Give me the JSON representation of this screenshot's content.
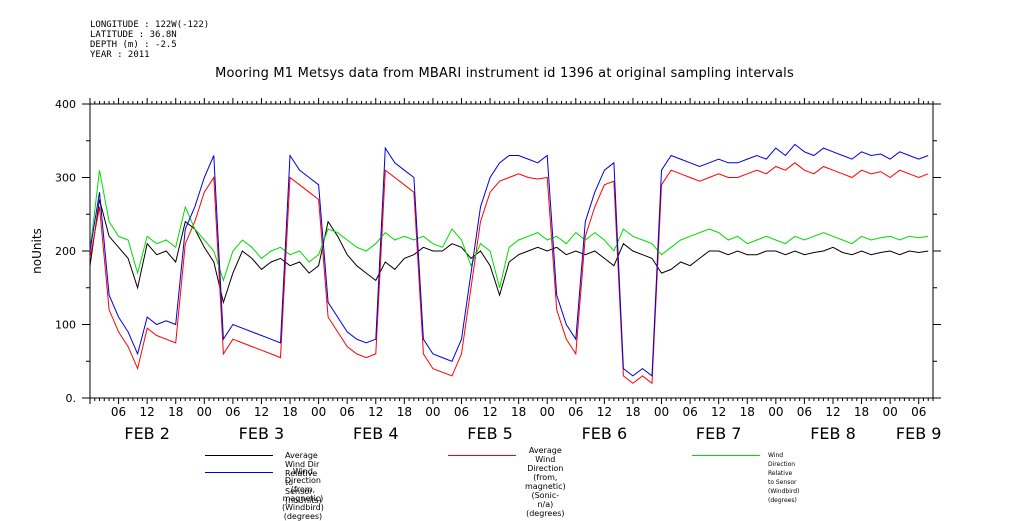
{
  "meta": {
    "longitude": "LONGITUDE : 122W(-122)",
    "latitude": "LATITUDE : 36.8N",
    "depth": "DEPTH (m) : -2.5",
    "year": "YEAR : 2011"
  },
  "chart_data": {
    "type": "line",
    "title": "Mooring M1 Metsys data from MBARI instrument id 1396 at original sampling intervals",
    "ylabel": "noUnits",
    "xlabel": "",
    "ylim": [
      0,
      400
    ],
    "xlim": [
      0,
      177
    ],
    "y_ticks": [
      0,
      100,
      200,
      300,
      400
    ],
    "y_tick_labels": [
      "0.",
      "100",
      "200",
      "300",
      "400"
    ],
    "x_hour_ticks": [
      6,
      12,
      18,
      24,
      30,
      36,
      42,
      48,
      54,
      60,
      66,
      72,
      78,
      84,
      90,
      96,
      102,
      108,
      114,
      120,
      126,
      132,
      138,
      144,
      150,
      156,
      162,
      168,
      174
    ],
    "x_hour_tick_labels": [
      "06",
      "12",
      "18",
      "00",
      "06",
      "12",
      "18",
      "00",
      "06",
      "12",
      "18",
      "00",
      "06",
      "12",
      "18",
      "00",
      "06",
      "12",
      "18",
      "00",
      "06",
      "12",
      "18",
      "00",
      "06",
      "12",
      "18",
      "00",
      "06"
    ],
    "x_day_labels": [
      {
        "x": 12,
        "label": "FEB  2"
      },
      {
        "x": 36,
        "label": "FEB  3"
      },
      {
        "x": 60,
        "label": "FEB  4"
      },
      {
        "x": 84,
        "label": "FEB  5"
      },
      {
        "x": 108,
        "label": "FEB  6"
      },
      {
        "x": 132,
        "label": "FEB  7"
      },
      {
        "x": 156,
        "label": "FEB  8"
      },
      {
        "x": 174,
        "label": "FEB  9"
      }
    ],
    "grid": false,
    "series": [
      {
        "name": "Average Wind Dir Relative to Sensor (noUnits)",
        "color": "#000000",
        "x": [
          0,
          2,
          4,
          6,
          8,
          10,
          12,
          14,
          16,
          18,
          20,
          22,
          24,
          26,
          28,
          30,
          32,
          34,
          36,
          38,
          40,
          42,
          44,
          46,
          48,
          50,
          52,
          54,
          56,
          58,
          60,
          62,
          64,
          66,
          68,
          70,
          72,
          74,
          76,
          78,
          80,
          82,
          84,
          86,
          88,
          90,
          92,
          94,
          96,
          98,
          100,
          102,
          104,
          106,
          108,
          110,
          112,
          114,
          116,
          118,
          120,
          122,
          124,
          126,
          128,
          130,
          132,
          134,
          136,
          138,
          140,
          142,
          144,
          146,
          148,
          150,
          152,
          154,
          156,
          158,
          160,
          162,
          164,
          166,
          168,
          170,
          172,
          174,
          176
        ],
        "values": [
          180,
          270,
          220,
          205,
          190,
          150,
          210,
          195,
          200,
          185,
          240,
          230,
          205,
          185,
          130,
          170,
          200,
          190,
          175,
          185,
          190,
          180,
          185,
          170,
          180,
          240,
          220,
          195,
          180,
          170,
          160,
          185,
          175,
          190,
          195,
          205,
          200,
          200,
          210,
          205,
          190,
          200,
          180,
          140,
          185,
          195,
          200,
          205,
          200,
          205,
          195,
          200,
          195,
          200,
          190,
          180,
          210,
          200,
          195,
          190,
          170,
          175,
          185,
          180,
          190,
          200,
          200,
          195,
          200,
          195,
          195,
          200,
          200,
          195,
          200,
          195,
          198,
          200,
          205,
          198,
          195,
          200,
          195,
          198,
          200,
          195,
          200,
          198,
          200
        ]
      },
      {
        "name": "Average Wind Direction (from, magnetic) (Sonic-n/a) (degrees)",
        "color": "#ff0000",
        "x": [
          0,
          2,
          4,
          6,
          8,
          10,
          12,
          14,
          16,
          18,
          20,
          22,
          24,
          26,
          28,
          30,
          32,
          34,
          36,
          38,
          40,
          42,
          44,
          46,
          48,
          50,
          52,
          54,
          56,
          58,
          60,
          62,
          64,
          66,
          68,
          70,
          72,
          74,
          76,
          78,
          80,
          82,
          84,
          86,
          88,
          90,
          92,
          94,
          96,
          98,
          100,
          102,
          104,
          106,
          108,
          110,
          112,
          114,
          116,
          118,
          120,
          122,
          124,
          126,
          128,
          130,
          132,
          134,
          136,
          138,
          140,
          142,
          144,
          146,
          148,
          150,
          152,
          154,
          156,
          158,
          160,
          162,
          164,
          166,
          168,
          170,
          172,
          174,
          176
        ],
        "values": [
          190,
          260,
          120,
          90,
          70,
          40,
          95,
          85,
          80,
          75,
          210,
          240,
          280,
          300,
          60,
          80,
          75,
          70,
          65,
          60,
          55,
          300,
          290,
          280,
          270,
          110,
          90,
          70,
          60,
          55,
          60,
          310,
          300,
          290,
          280,
          60,
          40,
          35,
          30,
          60,
          150,
          240,
          280,
          295,
          300,
          305,
          300,
          298,
          300,
          120,
          80,
          60,
          220,
          260,
          290,
          295,
          30,
          20,
          30,
          20,
          290,
          310,
          305,
          300,
          295,
          300,
          305,
          300,
          300,
          305,
          310,
          305,
          315,
          310,
          320,
          310,
          305,
          315,
          310,
          305,
          300,
          310,
          305,
          308,
          300,
          310,
          305,
          300,
          305
        ]
      },
      {
        "name": "Wind Direction Relative to Sensor (Windbird) (degrees)",
        "color": "#00dd00",
        "x": [
          0,
          2,
          4,
          6,
          8,
          10,
          12,
          14,
          16,
          18,
          20,
          22,
          24,
          26,
          28,
          30,
          32,
          34,
          36,
          38,
          40,
          42,
          44,
          46,
          48,
          50,
          52,
          54,
          56,
          58,
          60,
          62,
          64,
          66,
          68,
          70,
          72,
          74,
          76,
          78,
          80,
          82,
          84,
          86,
          88,
          90,
          92,
          94,
          96,
          98,
          100,
          102,
          104,
          106,
          108,
          110,
          112,
          114,
          116,
          118,
          120,
          122,
          124,
          126,
          128,
          130,
          132,
          134,
          136,
          138,
          140,
          142,
          144,
          146,
          148,
          150,
          152,
          154,
          156,
          158,
          160,
          162,
          164,
          166,
          168,
          170,
          172,
          174,
          176
        ],
        "values": [
          200,
          310,
          240,
          220,
          215,
          170,
          220,
          210,
          215,
          205,
          260,
          230,
          215,
          200,
          160,
          200,
          215,
          205,
          190,
          200,
          205,
          195,
          200,
          185,
          195,
          230,
          225,
          215,
          205,
          200,
          210,
          225,
          215,
          220,
          215,
          220,
          210,
          205,
          230,
          215,
          180,
          210,
          200,
          150,
          205,
          215,
          220,
          225,
          215,
          220,
          210,
          225,
          215,
          225,
          215,
          200,
          230,
          220,
          215,
          210,
          195,
          205,
          215,
          220,
          225,
          230,
          225,
          215,
          220,
          210,
          215,
          220,
          215,
          210,
          220,
          215,
          220,
          225,
          220,
          215,
          210,
          220,
          215,
          218,
          220,
          215,
          220,
          218,
          220
        ]
      },
      {
        "name": "Wind Direction (from, magnetic) (Windbird) (degrees)",
        "color": "#0000dd",
        "x": [
          0,
          2,
          4,
          6,
          8,
          10,
          12,
          14,
          16,
          18,
          20,
          22,
          24,
          26,
          28,
          30,
          32,
          34,
          36,
          38,
          40,
          42,
          44,
          46,
          48,
          50,
          52,
          54,
          56,
          58,
          60,
          62,
          64,
          66,
          68,
          70,
          72,
          74,
          76,
          78,
          80,
          82,
          84,
          86,
          88,
          90,
          92,
          94,
          96,
          98,
          100,
          102,
          104,
          106,
          108,
          110,
          112,
          114,
          116,
          118,
          120,
          122,
          124,
          126,
          128,
          130,
          132,
          134,
          136,
          138,
          140,
          142,
          144,
          146,
          148,
          150,
          152,
          154,
          156,
          158,
          160,
          162,
          164,
          166,
          168,
          170,
          172,
          174,
          176
        ],
        "values": [
          200,
          280,
          140,
          110,
          90,
          60,
          110,
          100,
          105,
          100,
          230,
          260,
          300,
          330,
          80,
          100,
          95,
          90,
          85,
          80,
          75,
          330,
          310,
          300,
          290,
          130,
          110,
          90,
          80,
          75,
          80,
          340,
          320,
          310,
          300,
          80,
          60,
          55,
          50,
          80,
          170,
          260,
          300,
          320,
          330,
          330,
          325,
          320,
          330,
          140,
          100,
          80,
          240,
          280,
          310,
          320,
          40,
          30,
          40,
          30,
          310,
          330,
          325,
          320,
          315,
          320,
          325,
          320,
          320,
          325,
          330,
          325,
          340,
          330,
          345,
          335,
          330,
          340,
          335,
          330,
          325,
          335,
          330,
          332,
          325,
          335,
          330,
          325,
          330
        ]
      }
    ],
    "legend": [
      {
        "text": "Average Wind Dir Relative to Sensor (noUnits)"
      },
      {
        "text": "Average Wind Direction (from,\n magnetic) (Sonic-n/a) (degrees)"
      },
      {
        "text": "Wind Direction Relative to Sensor (Windbird) (degrees)"
      },
      {
        "text": "Wind Direction (from,\n magnetic) (Windbird) (degrees)"
      }
    ]
  }
}
